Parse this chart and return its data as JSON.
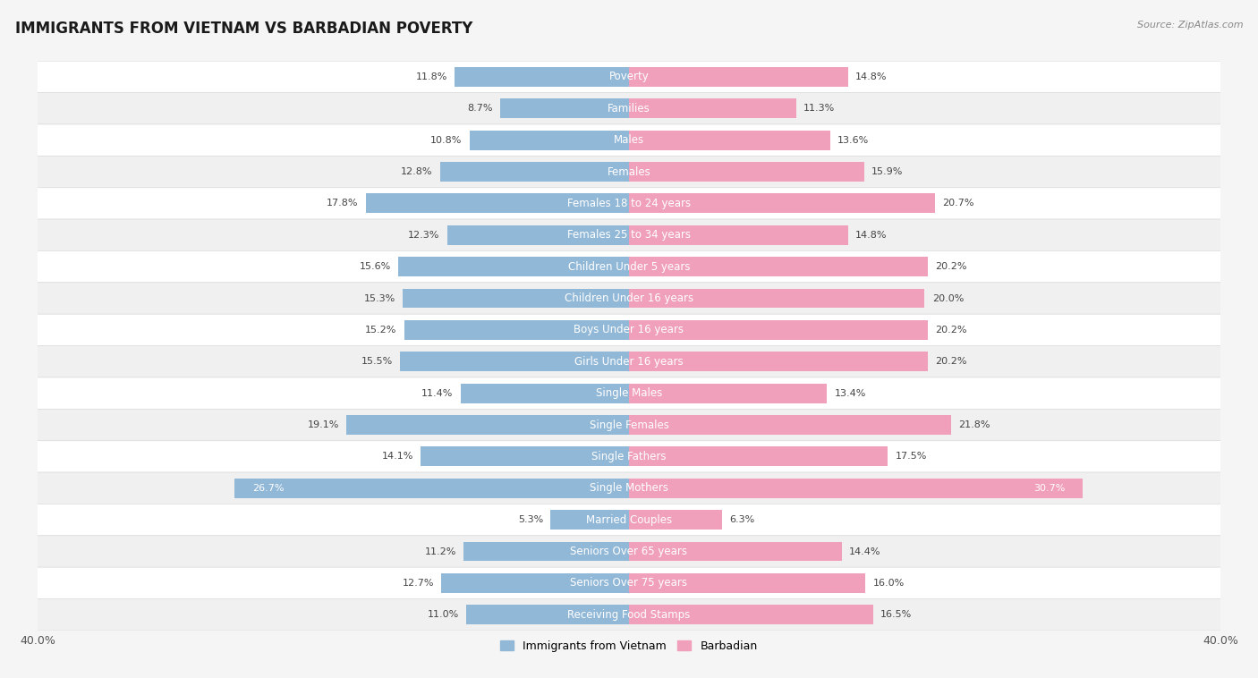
{
  "title": "IMMIGRANTS FROM VIETNAM VS BARBADIAN POVERTY",
  "source": "Source: ZipAtlas.com",
  "categories": [
    "Poverty",
    "Families",
    "Males",
    "Females",
    "Females 18 to 24 years",
    "Females 25 to 34 years",
    "Children Under 5 years",
    "Children Under 16 years",
    "Boys Under 16 years",
    "Girls Under 16 years",
    "Single Males",
    "Single Females",
    "Single Fathers",
    "Single Mothers",
    "Married Couples",
    "Seniors Over 65 years",
    "Seniors Over 75 years",
    "Receiving Food Stamps"
  ],
  "vietnam_values": [
    11.8,
    8.7,
    10.8,
    12.8,
    17.8,
    12.3,
    15.6,
    15.3,
    15.2,
    15.5,
    11.4,
    19.1,
    14.1,
    26.7,
    5.3,
    11.2,
    12.7,
    11.0
  ],
  "barbadian_values": [
    14.8,
    11.3,
    13.6,
    15.9,
    20.7,
    14.8,
    20.2,
    20.0,
    20.2,
    20.2,
    13.4,
    21.8,
    17.5,
    30.7,
    6.3,
    14.4,
    16.0,
    16.5
  ],
  "vietnam_color": "#92b8d8",
  "barbadian_color": "#f0a0bb",
  "vietnam_label": "Immigrants from Vietnam",
  "barbadian_label": "Barbadian",
  "xlim": 40.0,
  "row_bg_odd": "#f0f0f0",
  "row_bg_even": "#ffffff",
  "title_fontsize": 12,
  "label_fontsize": 8.5,
  "value_fontsize": 8.0,
  "bar_height": 0.62
}
